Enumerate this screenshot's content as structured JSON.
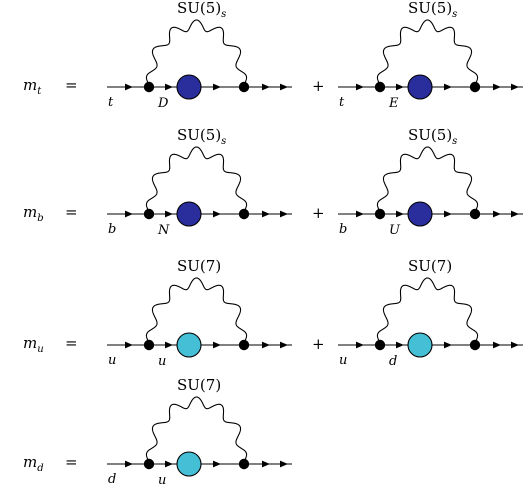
{
  "colors": {
    "dark_blob": "#2a2e9c",
    "light_blob": "#45bfd6",
    "line": "#000000",
    "background": "#ffffff"
  },
  "rows": [
    {
      "lhs": "m",
      "lhs_sub": "t",
      "equals": "=",
      "plus": "+",
      "diagrams": [
        {
          "gauge": "SU(5)",
          "gauge_sub": "s",
          "in_label": "t",
          "mid_label": "D",
          "blob": "dark"
        },
        {
          "gauge": "SU(5)",
          "gauge_sub": "s",
          "in_label": "t",
          "mid_label": "E",
          "blob": "dark"
        }
      ]
    },
    {
      "lhs": "m",
      "lhs_sub": "b",
      "equals": "=",
      "plus": "+",
      "diagrams": [
        {
          "gauge": "SU(5)",
          "gauge_sub": "s",
          "in_label": "b",
          "mid_label": "N",
          "blob": "dark"
        },
        {
          "gauge": "SU(5)",
          "gauge_sub": "s",
          "in_label": "b",
          "mid_label": "U",
          "blob": "dark"
        }
      ]
    },
    {
      "lhs": "m",
      "lhs_sub": "u",
      "equals": "=",
      "plus": "+",
      "diagrams": [
        {
          "gauge": "SU(7)",
          "gauge_sub": "",
          "in_label": "u",
          "mid_label": "u",
          "blob": "light"
        },
        {
          "gauge": "SU(7)",
          "gauge_sub": "",
          "in_label": "u",
          "mid_label": "d",
          "blob": "light"
        }
      ]
    },
    {
      "lhs": "m",
      "lhs_sub": "d",
      "equals": "=",
      "plus": "",
      "diagrams": [
        {
          "gauge": "SU(7)",
          "gauge_sub": "",
          "in_label": "d",
          "mid_label": "u",
          "blob": "light"
        }
      ]
    }
  ]
}
